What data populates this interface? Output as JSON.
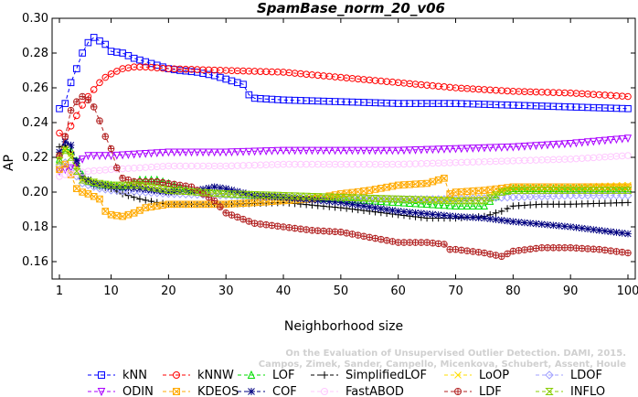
{
  "chart_data": {
    "type": "line",
    "title": "SpamBase_norm_20_v06",
    "xlabel": "Neighborhood size",
    "ylabel": "AP",
    "xlim": [
      1,
      100
    ],
    "ylim": [
      0.15,
      0.3
    ],
    "xticks": [
      1,
      10,
      20,
      30,
      40,
      50,
      60,
      70,
      80,
      90,
      100
    ],
    "yticks": [
      0.16,
      0.18,
      0.2,
      0.22,
      0.24,
      0.26,
      0.28,
      0.3
    ],
    "xtick_labels": [
      "1",
      "10",
      "20",
      "30",
      "40",
      "50",
      "60",
      "70",
      "80",
      "90",
      "100"
    ],
    "ytick_labels": [
      "0.16",
      "0.18",
      "0.20",
      "0.22",
      "0.24",
      "0.26",
      "0.28",
      "0.30"
    ],
    "grid": false,
    "legend_position": "bottom",
    "watermark_lines": [
      "Campos, Zimek, Sander, Campello, Micenkova, Schubert, Assent, Houle",
      "On the Evaluation of Unsupervised Outlier Detection. DAMI, 2015."
    ],
    "series": [
      {
        "name": "kNN",
        "color": "#0000ff",
        "marker": "square",
        "points": [
          [
            1,
            0.248
          ],
          [
            2,
            0.251
          ],
          [
            3,
            0.263
          ],
          [
            4,
            0.271
          ],
          [
            5,
            0.28
          ],
          [
            6,
            0.286
          ],
          [
            7,
            0.289
          ],
          [
            8,
            0.287
          ],
          [
            9,
            0.285
          ],
          [
            10,
            0.281
          ],
          [
            12,
            0.28
          ],
          [
            14,
            0.277
          ],
          [
            16,
            0.275
          ],
          [
            18,
            0.273
          ],
          [
            20,
            0.271
          ],
          [
            22,
            0.27
          ],
          [
            25,
            0.269
          ],
          [
            28,
            0.267
          ],
          [
            30,
            0.265
          ],
          [
            33,
            0.262
          ],
          [
            34,
            0.256
          ],
          [
            35,
            0.254
          ],
          [
            40,
            0.253
          ],
          [
            50,
            0.252
          ],
          [
            60,
            0.251
          ],
          [
            70,
            0.251
          ],
          [
            80,
            0.25
          ],
          [
            90,
            0.249
          ],
          [
            100,
            0.248
          ]
        ]
      },
      {
        "name": "kNNW",
        "color": "#ff0000",
        "marker": "circle",
        "points": [
          [
            1,
            0.234
          ],
          [
            2,
            0.232
          ],
          [
            3,
            0.238
          ],
          [
            4,
            0.244
          ],
          [
            5,
            0.25
          ],
          [
            6,
            0.255
          ],
          [
            7,
            0.259
          ],
          [
            8,
            0.263
          ],
          [
            9,
            0.266
          ],
          [
            10,
            0.268
          ],
          [
            12,
            0.271
          ],
          [
            14,
            0.272
          ],
          [
            16,
            0.272
          ],
          [
            20,
            0.271
          ],
          [
            30,
            0.27
          ],
          [
            40,
            0.269
          ],
          [
            50,
            0.266
          ],
          [
            60,
            0.263
          ],
          [
            70,
            0.26
          ],
          [
            80,
            0.258
          ],
          [
            90,
            0.257
          ],
          [
            100,
            0.255
          ]
        ]
      },
      {
        "name": "LOF",
        "color": "#00dd00",
        "marker": "triangle-up",
        "points": [
          [
            1,
            0.219
          ],
          [
            2,
            0.225
          ],
          [
            3,
            0.224
          ],
          [
            4,
            0.218
          ],
          [
            5,
            0.21
          ],
          [
            6,
            0.206
          ],
          [
            8,
            0.204
          ],
          [
            10,
            0.204
          ],
          [
            12,
            0.203
          ],
          [
            15,
            0.207
          ],
          [
            18,
            0.207
          ],
          [
            20,
            0.205
          ],
          [
            25,
            0.2
          ],
          [
            30,
            0.199
          ],
          [
            40,
            0.197
          ],
          [
            50,
            0.196
          ],
          [
            60,
            0.194
          ],
          [
            65,
            0.193
          ],
          [
            70,
            0.192
          ],
          [
            75,
            0.192
          ],
          [
            78,
            0.2
          ],
          [
            80,
            0.202
          ],
          [
            90,
            0.202
          ],
          [
            100,
            0.202
          ]
        ]
      },
      {
        "name": "SimplifiedLOF",
        "color": "#000000",
        "marker": "plus",
        "points": [
          [
            1,
            0.226
          ],
          [
            2,
            0.227
          ],
          [
            3,
            0.223
          ],
          [
            4,
            0.215
          ],
          [
            5,
            0.208
          ],
          [
            7,
            0.204
          ],
          [
            10,
            0.202
          ],
          [
            12,
            0.199
          ],
          [
            15,
            0.196
          ],
          [
            18,
            0.194
          ],
          [
            20,
            0.193
          ],
          [
            25,
            0.193
          ],
          [
            30,
            0.193
          ],
          [
            40,
            0.194
          ],
          [
            50,
            0.191
          ],
          [
            55,
            0.189
          ],
          [
            60,
            0.187
          ],
          [
            65,
            0.185
          ],
          [
            70,
            0.185
          ],
          [
            75,
            0.186
          ],
          [
            78,
            0.189
          ],
          [
            80,
            0.192
          ],
          [
            85,
            0.193
          ],
          [
            90,
            0.193
          ],
          [
            100,
            0.194
          ]
        ]
      },
      {
        "name": "LoOP",
        "color": "#ffdd00",
        "marker": "x",
        "points": [
          [
            1,
            0.221
          ],
          [
            2,
            0.225
          ],
          [
            3,
            0.222
          ],
          [
            4,
            0.214
          ],
          [
            5,
            0.208
          ],
          [
            8,
            0.205
          ],
          [
            10,
            0.204
          ],
          [
            15,
            0.204
          ],
          [
            20,
            0.201
          ],
          [
            30,
            0.199
          ],
          [
            40,
            0.198
          ],
          [
            50,
            0.197
          ],
          [
            60,
            0.196
          ],
          [
            70,
            0.196
          ],
          [
            75,
            0.197
          ],
          [
            78,
            0.201
          ],
          [
            80,
            0.203
          ],
          [
            90,
            0.203
          ],
          [
            100,
            0.204
          ]
        ]
      },
      {
        "name": "LDOF",
        "color": "#a0a0ff",
        "marker": "diamond",
        "points": [
          [
            1,
            0.215
          ],
          [
            2,
            0.217
          ],
          [
            3,
            0.213
          ],
          [
            4,
            0.209
          ],
          [
            5,
            0.205
          ],
          [
            8,
            0.202
          ],
          [
            10,
            0.201
          ],
          [
            15,
            0.2
          ],
          [
            20,
            0.199
          ],
          [
            30,
            0.198
          ],
          [
            40,
            0.197
          ],
          [
            50,
            0.196
          ],
          [
            60,
            0.196
          ],
          [
            70,
            0.196
          ],
          [
            80,
            0.197
          ],
          [
            90,
            0.198
          ],
          [
            100,
            0.198
          ]
        ]
      },
      {
        "name": "ODIN",
        "color": "#aa00ff",
        "marker": "triangle-down",
        "points": [
          [
            1,
            0.212
          ],
          [
            2,
            0.213
          ],
          [
            3,
            0.214
          ],
          [
            4,
            0.217
          ],
          [
            5,
            0.219
          ],
          [
            6,
            0.221
          ],
          [
            8,
            0.221
          ],
          [
            10,
            0.221
          ],
          [
            15,
            0.222
          ],
          [
            20,
            0.223
          ],
          [
            30,
            0.223
          ],
          [
            40,
            0.224
          ],
          [
            50,
            0.224
          ],
          [
            60,
            0.224
          ],
          [
            70,
            0.225
          ],
          [
            80,
            0.226
          ],
          [
            90,
            0.228
          ],
          [
            100,
            0.231
          ]
        ]
      },
      {
        "name": "KDEOS",
        "color": "#ffaa00",
        "marker": "square-x",
        "points": [
          [
            1,
            0.213
          ],
          [
            2,
            0.216
          ],
          [
            3,
            0.21
          ],
          [
            4,
            0.202
          ],
          [
            5,
            0.2
          ],
          [
            6,
            0.199
          ],
          [
            8,
            0.196
          ],
          [
            9,
            0.189
          ],
          [
            10,
            0.187
          ],
          [
            12,
            0.186
          ],
          [
            14,
            0.188
          ],
          [
            16,
            0.191
          ],
          [
            18,
            0.192
          ],
          [
            20,
            0.193
          ],
          [
            25,
            0.193
          ],
          [
            30,
            0.193
          ],
          [
            35,
            0.194
          ],
          [
            40,
            0.195
          ],
          [
            45,
            0.196
          ],
          [
            50,
            0.199
          ],
          [
            55,
            0.201
          ],
          [
            60,
            0.204
          ],
          [
            65,
            0.205
          ],
          [
            67,
            0.207
          ],
          [
            68,
            0.208
          ],
          [
            69,
            0.199
          ],
          [
            70,
            0.2
          ],
          [
            75,
            0.201
          ],
          [
            80,
            0.203
          ],
          [
            90,
            0.203
          ],
          [
            100,
            0.203
          ]
        ]
      },
      {
        "name": "COF",
        "color": "#000080",
        "marker": "asterisk",
        "points": [
          [
            1,
            0.223
          ],
          [
            2,
            0.229
          ],
          [
            3,
            0.227
          ],
          [
            4,
            0.218
          ],
          [
            5,
            0.209
          ],
          [
            7,
            0.205
          ],
          [
            10,
            0.203
          ],
          [
            15,
            0.202
          ],
          [
            20,
            0.2
          ],
          [
            25,
            0.201
          ],
          [
            28,
            0.203
          ],
          [
            30,
            0.202
          ],
          [
            35,
            0.198
          ],
          [
            40,
            0.197
          ],
          [
            50,
            0.194
          ],
          [
            60,
            0.189
          ],
          [
            70,
            0.186
          ],
          [
            75,
            0.185
          ],
          [
            80,
            0.183
          ],
          [
            90,
            0.18
          ],
          [
            100,
            0.176
          ]
        ]
      },
      {
        "name": "FastABOD",
        "color": "#ffc8ff",
        "marker": "circle",
        "points": [
          [
            1,
            0.209
          ],
          [
            2,
            0.21
          ],
          [
            4,
            0.211
          ],
          [
            6,
            0.212
          ],
          [
            10,
            0.213
          ],
          [
            15,
            0.214
          ],
          [
            20,
            0.215
          ],
          [
            30,
            0.215
          ],
          [
            40,
            0.216
          ],
          [
            50,
            0.216
          ],
          [
            60,
            0.216
          ],
          [
            70,
            0.217
          ],
          [
            80,
            0.218
          ],
          [
            90,
            0.219
          ],
          [
            100,
            0.221
          ]
        ]
      },
      {
        "name": "LDF",
        "color": "#b22222",
        "marker": "circle-plus",
        "points": [
          [
            1,
            0.221
          ],
          [
            2,
            0.232
          ],
          [
            3,
            0.247
          ],
          [
            4,
            0.252
          ],
          [
            5,
            0.255
          ],
          [
            6,
            0.253
          ],
          [
            7,
            0.249
          ],
          [
            8,
            0.241
          ],
          [
            9,
            0.232
          ],
          [
            10,
            0.225
          ],
          [
            11,
            0.214
          ],
          [
            12,
            0.208
          ],
          [
            14,
            0.206
          ],
          [
            16,
            0.206
          ],
          [
            18,
            0.206
          ],
          [
            20,
            0.205
          ],
          [
            24,
            0.203
          ],
          [
            28,
            0.195
          ],
          [
            30,
            0.188
          ],
          [
            35,
            0.182
          ],
          [
            40,
            0.18
          ],
          [
            45,
            0.178
          ],
          [
            50,
            0.177
          ],
          [
            55,
            0.174
          ],
          [
            60,
            0.171
          ],
          [
            65,
            0.171
          ],
          [
            68,
            0.17
          ],
          [
            69,
            0.167
          ],
          [
            70,
            0.167
          ],
          [
            75,
            0.165
          ],
          [
            78,
            0.163
          ],
          [
            80,
            0.166
          ],
          [
            85,
            0.168
          ],
          [
            90,
            0.168
          ],
          [
            95,
            0.167
          ],
          [
            100,
            0.165
          ]
        ]
      },
      {
        "name": "INFLO",
        "color": "#88cc00",
        "marker": "hourglass",
        "points": [
          [
            1,
            0.218
          ],
          [
            2,
            0.224
          ],
          [
            3,
            0.22
          ],
          [
            4,
            0.212
          ],
          [
            5,
            0.207
          ],
          [
            8,
            0.205
          ],
          [
            10,
            0.204
          ],
          [
            15,
            0.204
          ],
          [
            20,
            0.201
          ],
          [
            30,
            0.199
          ],
          [
            40,
            0.198
          ],
          [
            50,
            0.197
          ],
          [
            60,
            0.196
          ],
          [
            70,
            0.195
          ],
          [
            75,
            0.195
          ],
          [
            78,
            0.2
          ],
          [
            80,
            0.201
          ],
          [
            90,
            0.201
          ],
          [
            100,
            0.201
          ]
        ]
      }
    ]
  }
}
